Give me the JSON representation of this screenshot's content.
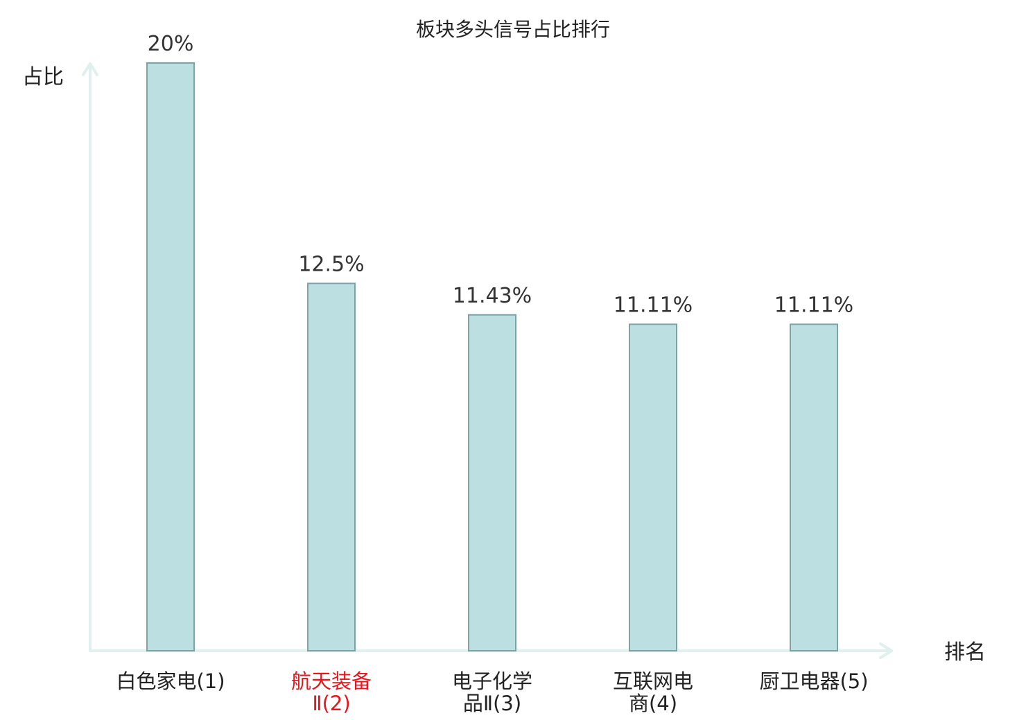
{
  "chart_data": {
    "type": "bar",
    "title": "板块多头信号占比排行",
    "xlabel": "排名",
    "ylabel": "占比",
    "ylim": [
      0,
      20
    ],
    "grid": false,
    "legend": false,
    "categories": [
      {
        "lines": [
          "白色家电(1)"
        ],
        "highlight": false
      },
      {
        "lines": [
          "航天装备",
          "Ⅱ(2)"
        ],
        "highlight": true
      },
      {
        "lines": [
          "电子化学",
          "品Ⅱ(3)"
        ],
        "highlight": false
      },
      {
        "lines": [
          "互联网电",
          "商(4)"
        ],
        "highlight": false
      },
      {
        "lines": [
          "厨卫电器(5)"
        ],
        "highlight": false
      }
    ],
    "values": [
      20,
      12.5,
      11.43,
      11.11,
      11.11
    ],
    "value_labels": [
      "20%",
      "12.5%",
      "11.43%",
      "11.11%",
      "11.11%"
    ]
  },
  "colors": {
    "bar_fill": "#bce0e1",
    "bar_stroke": "#7fa3a4",
    "axis": "#dff0ee",
    "highlight_text": "#e8161b",
    "text": "#222222"
  }
}
